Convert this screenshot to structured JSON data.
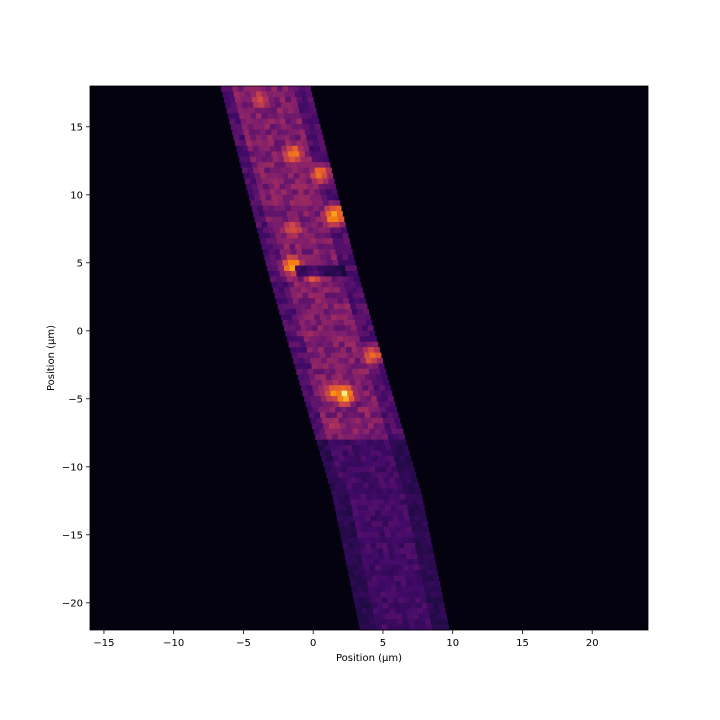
{
  "chart_data": {
    "type": "heatmap",
    "title": "",
    "xlabel": "Position (μm)",
    "ylabel": "Position (μm)",
    "xlim": [
      -16,
      24
    ],
    "ylim": [
      -22,
      18
    ],
    "xticks": [
      -15,
      -10,
      -5,
      0,
      5,
      10,
      15,
      20
    ],
    "xtick_labels": [
      "−15",
      "−10",
      "−5",
      "0",
      "5",
      "10",
      "15",
      "20"
    ],
    "yticks": [
      -20,
      -15,
      -10,
      -5,
      0,
      5,
      10,
      15
    ],
    "ytick_labels": [
      "−20",
      "−15",
      "−10",
      "−5",
      "0",
      "5",
      "10",
      "15"
    ],
    "colormap": "inferno",
    "grid": false,
    "colorbar": false,
    "band": {
      "description_centerline": [
        [
          -3.5,
          18
        ],
        [
          0,
          4
        ],
        [
          2.5,
          -5
        ],
        [
          4.5,
          -12
        ],
        [
          6.5,
          -22
        ]
      ],
      "width_um": 5.5
    },
    "hotspots": [
      {
        "x": -1.5,
        "y": 13,
        "intensity": 0.85
      },
      {
        "x": 0.5,
        "y": 11.5,
        "intensity": 0.8
      },
      {
        "x": 1.5,
        "y": 8.5,
        "intensity": 0.95
      },
      {
        "x": -1.5,
        "y": 7.5,
        "intensity": 0.75
      },
      {
        "x": -1.5,
        "y": 4.8,
        "intensity": 0.9
      },
      {
        "x": 0,
        "y": 4.2,
        "intensity": 0.85
      },
      {
        "x": 4.2,
        "y": -1.8,
        "intensity": 0.8
      },
      {
        "x": 1.5,
        "y": -4.5,
        "intensity": 0.85
      },
      {
        "x": 2.2,
        "y": -4.7,
        "intensity": 1.0
      },
      {
        "x": 1.5,
        "y": -7,
        "intensity": 0.6
      },
      {
        "x": -3.8,
        "y": 17,
        "intensity": 0.7
      }
    ]
  }
}
